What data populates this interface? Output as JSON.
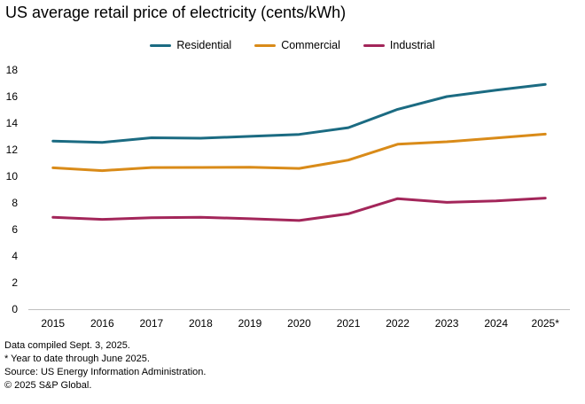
{
  "chart_data": {
    "type": "line",
    "title": "US average retail price of electricity (cents/kWh)",
    "categories": [
      "2015",
      "2016",
      "2017",
      "2018",
      "2019",
      "2020",
      "2021",
      "2022",
      "2023",
      "2024",
      "2025*"
    ],
    "ylim": [
      0,
      18
    ],
    "yticks": [
      0,
      2,
      4,
      6,
      8,
      10,
      12,
      14,
      16,
      18
    ],
    "grid": false,
    "legend_position": "top-center",
    "series": [
      {
        "name": "Residential",
        "color": "#1b6b82",
        "values": [
          12.65,
          12.55,
          12.9,
          12.87,
          13.01,
          13.15,
          13.66,
          15.04,
          16.0,
          16.48,
          16.92
        ]
      },
      {
        "name": "Commercial",
        "color": "#d98b19",
        "values": [
          10.64,
          10.43,
          10.66,
          10.67,
          10.68,
          10.59,
          11.22,
          12.41,
          12.6,
          12.88,
          13.17
        ]
      },
      {
        "name": "Industrial",
        "color": "#a3265a",
        "values": [
          6.91,
          6.76,
          6.88,
          6.92,
          6.81,
          6.67,
          7.18,
          8.32,
          8.04,
          8.15,
          8.36
        ]
      }
    ]
  },
  "notes": [
    "Data compiled Sept. 3, 2025.",
    "* Year to date through June 2025.",
    "Source: US Energy Information Administration.",
    "© 2025 S&P Global."
  ]
}
